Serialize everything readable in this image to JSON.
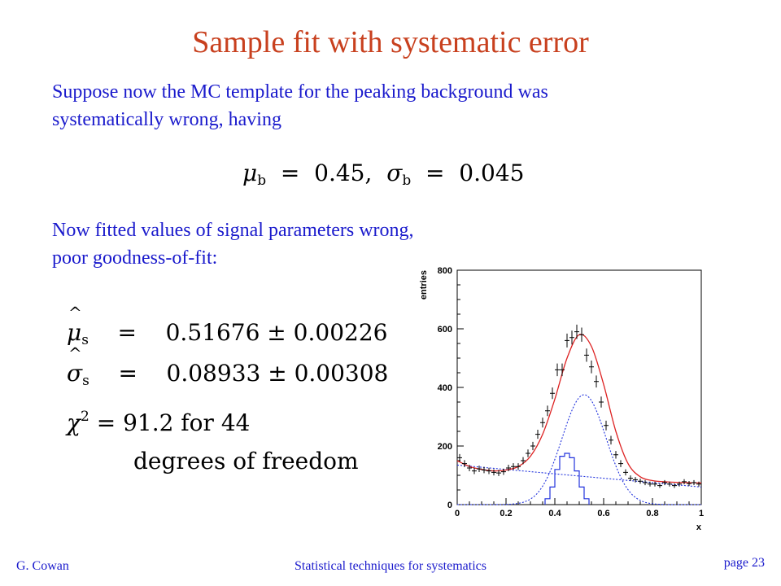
{
  "slide": {
    "title": "Sample fit with systematic error",
    "intro_line1": "Suppose now the MC template for the peaking background was",
    "intro_line2": "systematically wrong, having",
    "equation": {
      "mu_sub": "b",
      "mu_val": "0.45,",
      "sigma_sub": "b",
      "sigma_val": "0.045"
    },
    "result_line1": "Now fitted values of signal parameters wrong,",
    "result_line2": "poor goodness-of-fit:",
    "fit": {
      "mu_sub": "s",
      "mu_val": "0.51676 ± 0.00226",
      "sigma_sub": "s",
      "sigma_val": "0.08933 ± 0.00308",
      "chi_sup": "2",
      "chi_val": "= 91.2 for 44",
      "dof": "degrees of freedom"
    },
    "footer": {
      "author": "G. Cowan",
      "course": "Statistical techniques for systematics",
      "page": "page 23"
    }
  },
  "chart_data": {
    "type": "histogram",
    "xlabel": "x",
    "ylabel": "entries",
    "xlim": [
      0,
      1
    ],
    "ylim": [
      0,
      800
    ],
    "xticks": [
      "0",
      "0.2",
      "0.4",
      "0.6",
      "0.8",
      "1"
    ],
    "yticks": [
      "0",
      "200",
      "400",
      "600",
      "800"
    ],
    "colors": {
      "fit": "#dd2222",
      "components": "#2233dd",
      "data": "#000000"
    },
    "data_points": {
      "x": [
        0.01,
        0.03,
        0.05,
        0.07,
        0.09,
        0.11,
        0.13,
        0.15,
        0.17,
        0.19,
        0.21,
        0.23,
        0.25,
        0.27,
        0.29,
        0.31,
        0.33,
        0.35,
        0.37,
        0.39,
        0.41,
        0.43,
        0.45,
        0.47,
        0.49,
        0.51,
        0.53,
        0.55,
        0.57,
        0.59,
        0.61,
        0.63,
        0.65,
        0.67,
        0.69,
        0.71,
        0.73,
        0.75,
        0.77,
        0.79,
        0.81,
        0.83,
        0.85,
        0.87,
        0.89,
        0.91,
        0.93,
        0.95,
        0.97,
        0.99
      ],
      "y": [
        160,
        140,
        125,
        115,
        122,
        118,
        115,
        110,
        108,
        112,
        125,
        130,
        130,
        150,
        175,
        200,
        240,
        280,
        320,
        380,
        460,
        460,
        560,
        570,
        590,
        580,
        510,
        470,
        420,
        350,
        270,
        220,
        170,
        140,
        110,
        90,
        85,
        80,
        75,
        70,
        70,
        65,
        75,
        70,
        65,
        70,
        78,
        72,
        75,
        70
      ]
    },
    "fit_curve": {
      "x": [
        0,
        0.05,
        0.1,
        0.15,
        0.2,
        0.25,
        0.3,
        0.35,
        0.4,
        0.45,
        0.5,
        0.55,
        0.6,
        0.65,
        0.7,
        0.75,
        0.8,
        0.85,
        0.9,
        0.95,
        1.0
      ],
      "y": [
        150,
        130,
        120,
        115,
        118,
        130,
        165,
        240,
        360,
        500,
        580,
        540,
        410,
        250,
        140,
        95,
        82,
        78,
        76,
        75,
        74
      ]
    },
    "smooth_background": {
      "x": [
        0,
        1
      ],
      "y": [
        135,
        60
      ]
    },
    "gaussian_component": {
      "mean": 0.52,
      "sigma": 0.09,
      "peak": 375
    },
    "peaking_histogram": {
      "bins": [
        0.36,
        0.38,
        0.4,
        0.42,
        0.44,
        0.46,
        0.48,
        0.5,
        0.52,
        0.54
      ],
      "values": [
        20,
        60,
        120,
        165,
        175,
        160,
        115,
        60,
        20
      ]
    }
  }
}
